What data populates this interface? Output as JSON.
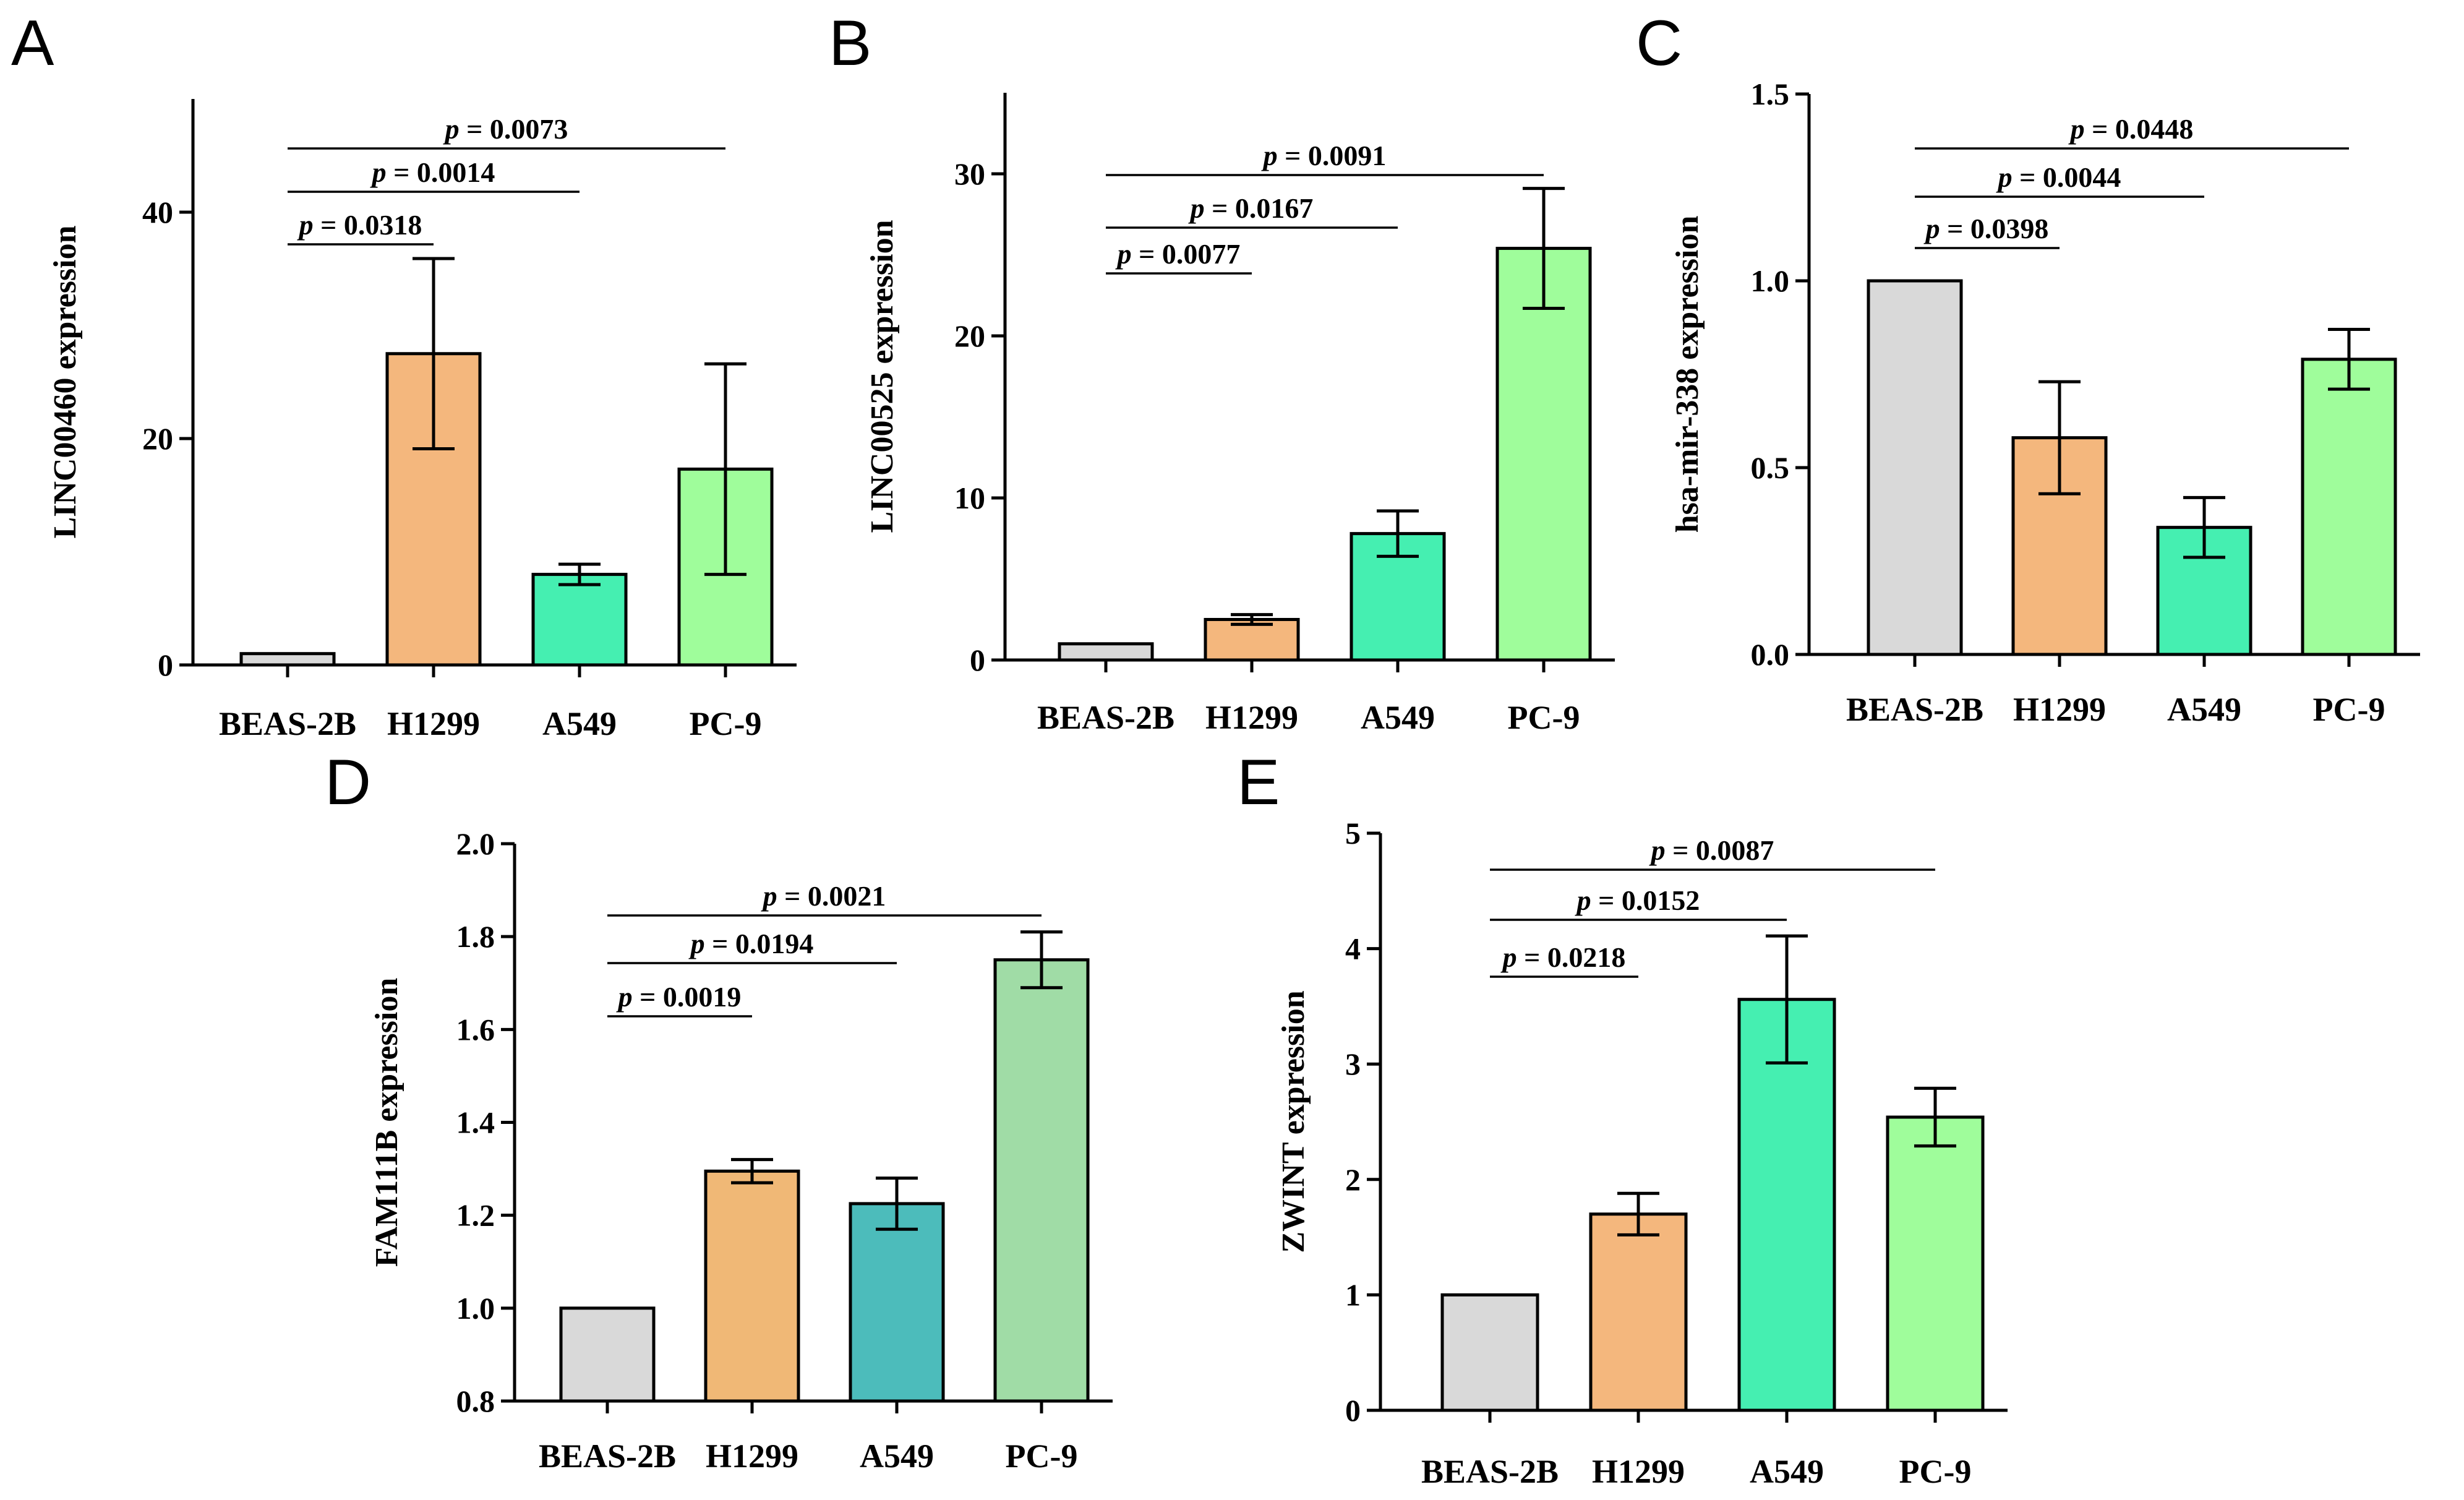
{
  "chart_data": [
    {
      "panel": "A",
      "type": "bar",
      "ylabel": "LINC00460 expression",
      "categories": [
        "BEAS-2B",
        "H1299",
        "A549",
        "PC-9"
      ],
      "values": [
        1.0,
        27.5,
        8.0,
        17.3
      ],
      "errors": [
        0,
        8.4,
        0.9,
        9.3
      ],
      "colors": [
        "#d9d9d9",
        "#f4b77d",
        "#45efb1",
        "#9ffd9b"
      ],
      "ylim": [
        0,
        50
      ],
      "yticks": [
        0,
        20,
        40
      ],
      "yticks_text": [
        "0",
        "20",
        "40"
      ],
      "comparisons": [
        {
          "from": 0,
          "to": 1,
          "p": "p = 0.0318",
          "p_symbol": "p",
          "p_value": " = 0.0318"
        },
        {
          "from": 0,
          "to": 2,
          "p": "p = 0.0014",
          "p_symbol": "p",
          "p_value": " = 0.0014"
        },
        {
          "from": 0,
          "to": 3,
          "p": "p = 0.0073",
          "p_symbol": "p",
          "p_value": " = 0.0073"
        }
      ]
    },
    {
      "panel": "B",
      "type": "bar",
      "ylabel": "LINC00525 expression",
      "categories": [
        "BEAS-2B",
        "H1299",
        "A549",
        "PC-9"
      ],
      "values": [
        1.0,
        2.5,
        7.8,
        25.4
      ],
      "errors": [
        0,
        0.3,
        1.4,
        3.7
      ],
      "colors": [
        "#d9d9d9",
        "#f4b77d",
        "#45efb1",
        "#9ffd9b"
      ],
      "ylim": [
        0,
        35
      ],
      "yticks": [
        0,
        10,
        20,
        30
      ],
      "yticks_text": [
        "0",
        "10",
        "20",
        "30"
      ],
      "comparisons": [
        {
          "from": 0,
          "to": 1,
          "p": "p = 0.0077",
          "p_symbol": "p",
          "p_value": " = 0.0077"
        },
        {
          "from": 0,
          "to": 2,
          "p": "p = 0.0167",
          "p_symbol": "p",
          "p_value": " = 0.0167"
        },
        {
          "from": 0,
          "to": 3,
          "p": "p = 0.0091",
          "p_symbol": "p",
          "p_value": " = 0.0091"
        }
      ]
    },
    {
      "panel": "C",
      "type": "bar",
      "ylabel": "hsa-mir-338 expression",
      "categories": [
        "BEAS-2B",
        "H1299",
        "A549",
        "PC-9"
      ],
      "values": [
        1.0,
        0.58,
        0.34,
        0.79
      ],
      "errors": [
        0,
        0.15,
        0.08,
        0.08
      ],
      "colors": [
        "#d9d9d9",
        "#f4b77d",
        "#45efb1",
        "#9ffd9b"
      ],
      "ylim": [
        0,
        1.5
      ],
      "yticks": [
        0,
        0.5,
        1.0,
        1.5
      ],
      "yticks_text": [
        "0.0",
        "0.5",
        "1.0",
        "1.5"
      ],
      "comparisons": [
        {
          "from": 0,
          "to": 1,
          "p": "p = 0.0398",
          "p_symbol": "p",
          "p_value": " = 0.0398"
        },
        {
          "from": 0,
          "to": 2,
          "p": "p = 0.0044",
          "p_symbol": "p",
          "p_value": " = 0.0044"
        },
        {
          "from": 0,
          "to": 3,
          "p": "p = 0.0448",
          "p_symbol": "p",
          "p_value": " = 0.0448"
        }
      ]
    },
    {
      "panel": "D",
      "type": "bar",
      "ylabel": "FAM111B expression",
      "categories": [
        "BEAS-2B",
        "H1299",
        "A549",
        "PC-9"
      ],
      "values": [
        1.0,
        1.295,
        1.225,
        1.75
      ],
      "errors": [
        0,
        0.025,
        0.055,
        0.06
      ],
      "colors": [
        "#d9d9d9",
        "#f0b876",
        "#4cbcbb",
        "#a0dca6"
      ],
      "ylim": [
        0.8,
        2.0
      ],
      "yticks": [
        0.8,
        1.0,
        1.2,
        1.4,
        1.6,
        1.8,
        2.0
      ],
      "yticks_text": [
        "0.8",
        "1.0",
        "1.2",
        "1.4",
        "1.6",
        "1.8",
        "2.0"
      ],
      "comparisons": [
        {
          "from": 0,
          "to": 1,
          "p": "p = 0.0019",
          "p_symbol": "p",
          "p_value": " = 0.0019"
        },
        {
          "from": 0,
          "to": 2,
          "p": "p = 0.0194",
          "p_symbol": "p",
          "p_value": " = 0.0194"
        },
        {
          "from": 0,
          "to": 3,
          "p": "p = 0.0021",
          "p_symbol": "p",
          "p_value": " = 0.0021"
        }
      ]
    },
    {
      "panel": "E",
      "type": "bar",
      "ylabel": "ZWINT expression",
      "categories": [
        "BEAS-2B",
        "H1299",
        "A549",
        "PC-9"
      ],
      "values": [
        1.0,
        1.7,
        3.56,
        2.54
      ],
      "errors": [
        0,
        0.18,
        0.55,
        0.25
      ],
      "colors": [
        "#d9d9d9",
        "#f4b77d",
        "#45efb1",
        "#9ffd9b"
      ],
      "ylim": [
        0,
        5
      ],
      "yticks": [
        0,
        1,
        2,
        3,
        4,
        5
      ],
      "yticks_text": [
        "0",
        "1",
        "2",
        "3",
        "4",
        "5"
      ],
      "comparisons": [
        {
          "from": 0,
          "to": 1,
          "p": "p = 0.0218",
          "p_symbol": "p",
          "p_value": " = 0.0218"
        },
        {
          "from": 0,
          "to": 2,
          "p": "p = 0.0152",
          "p_symbol": "p",
          "p_value": " = 0.0152"
        },
        {
          "from": 0,
          "to": 3,
          "p": "p = 0.0087",
          "p_symbol": "p",
          "p_value": " = 0.0087"
        }
      ]
    }
  ]
}
